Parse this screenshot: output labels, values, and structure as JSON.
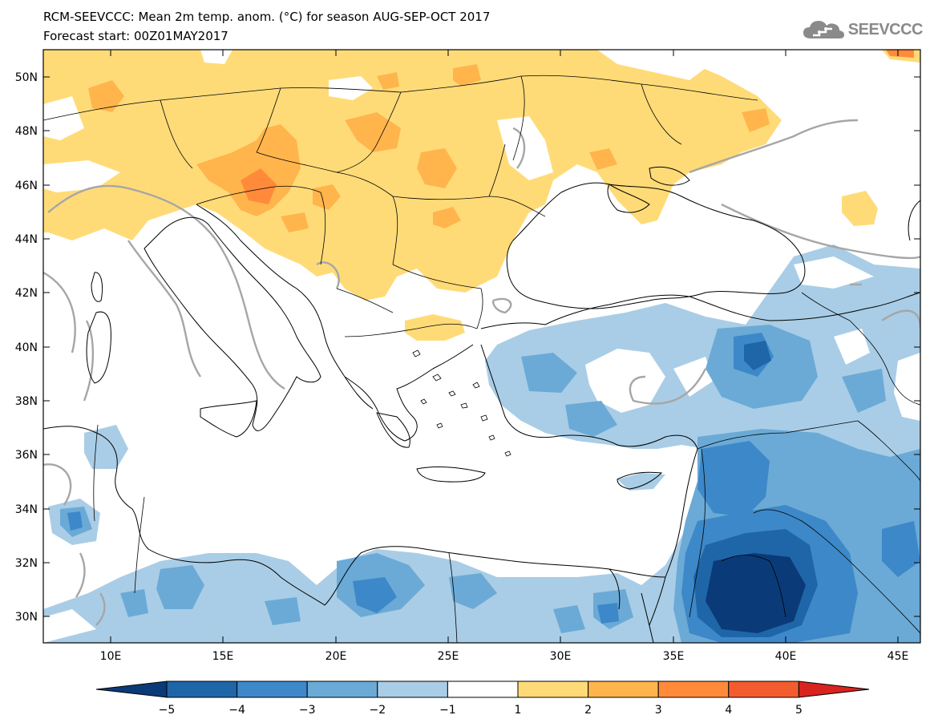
{
  "header": {
    "title": "RCM-SEEVCCC: Mean 2m temp. anom. (°C) for season AUG-SEP-OCT 2017",
    "subtitle": "Forecast start: 00Z01MAY2017",
    "logo_text": "SEEVCCC",
    "logo_icon": "cloud-icon"
  },
  "map": {
    "lon_range": [
      7,
      46
    ],
    "lat_range": [
      29,
      51
    ],
    "lat_labels": [
      "30N",
      "32N",
      "34N",
      "36N",
      "38N",
      "40N",
      "42N",
      "44N",
      "46N",
      "48N",
      "50N"
    ],
    "lon_labels": [
      "10E",
      "15E",
      "20E",
      "25E",
      "30E",
      "35E",
      "40E",
      "45E"
    ]
  },
  "legend": {
    "colors": [
      "#0b3a78",
      "#1f66a8",
      "#3d88c8",
      "#6baad6",
      "#a9cde6",
      "#ffffff",
      "#ffdb78",
      "#ffb54c",
      "#ff8b3a",
      "#f25c2e",
      "#d8231f"
    ],
    "labels": [
      "−5",
      "−4",
      "−3",
      "−2",
      "−1",
      "1",
      "2",
      "3",
      "4",
      "5"
    ]
  }
}
